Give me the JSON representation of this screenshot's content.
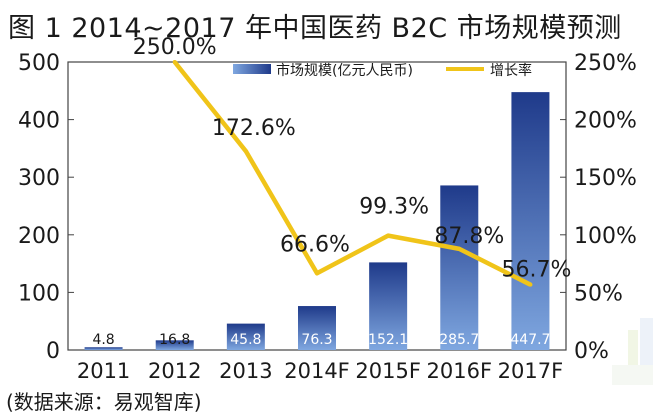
{
  "title": "图 1  2014~2017 年中国医药 B2C 市场规模预测",
  "source": "(数据来源：易观智库)",
  "colors": {
    "bar_dark": "#1f3a8a",
    "bar_light": "#7fa7e0",
    "line": "#f0c419",
    "text": "#1a1a1a"
  },
  "chart_data": {
    "type": "bar",
    "categories": [
      "2011",
      "2012",
      "2013",
      "2014F",
      "2015F",
      "2016F",
      "2017F"
    ],
    "series": [
      {
        "name": "市场规模(亿元人民币)",
        "type": "bar",
        "axis": "left",
        "values": [
          4.8,
          16.8,
          45.8,
          76.3,
          152.1,
          285.7,
          447.7
        ],
        "labels": [
          "4.8",
          "16.8",
          "45.8",
          "76.3",
          "152.1",
          "285.7",
          "447.7"
        ]
      },
      {
        "name": "增长率",
        "type": "line",
        "axis": "right",
        "x": [
          "2012",
          "2013",
          "2014F",
          "2015F",
          "2016F",
          "2017F"
        ],
        "values": [
          250.0,
          172.6,
          66.6,
          99.3,
          87.8,
          56.7
        ],
        "labels": [
          "250.0%",
          "172.6%",
          "66.6%",
          "99.3%",
          "87.8%",
          "56.7%"
        ]
      }
    ],
    "y_left": {
      "range": [
        0,
        500
      ],
      "ticks": [
        "0",
        "100",
        "200",
        "300",
        "400",
        "500"
      ]
    },
    "y_right": {
      "range": [
        0,
        250
      ],
      "ticks": [
        "0%",
        "50%",
        "100%",
        "150%",
        "200%",
        "250%"
      ]
    },
    "legend": {
      "position": "top",
      "entries": [
        "市场规模(亿元人民币)",
        "增长率"
      ]
    },
    "grid": false
  }
}
